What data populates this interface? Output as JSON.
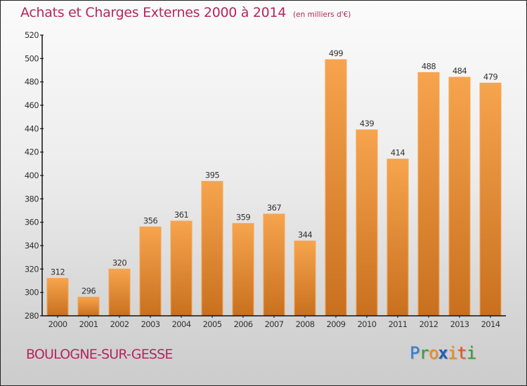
{
  "header": {
    "title": "Achats et Charges Externes 2000 à 2014",
    "subtitle": "(en milliers d'€)"
  },
  "footer": {
    "city": "BOULOGNE-SUR-GESSE",
    "logo_letters": [
      {
        "char": "P",
        "color": "#2f7fd0"
      },
      {
        "char": "r",
        "color": "#3f9a3a"
      },
      {
        "char": "o",
        "color": "#f28a1e"
      },
      {
        "char": "x",
        "color": "#1f5fb5"
      },
      {
        "char": "i",
        "color": "#f28a1e"
      },
      {
        "char": "t",
        "color": "#e8532a"
      },
      {
        "char": "i",
        "color": "#3f9a3a"
      }
    ]
  },
  "colors": {
    "title": "#b5265a",
    "bar_top": "#f7a44e",
    "bar_bottom": "#c8701e",
    "axis": "#111111",
    "label": "#333333"
  },
  "chart_data": {
    "type": "bar",
    "title": "Achats et Charges Externes 2000 à 2014",
    "subtitle": "(en milliers d'€)",
    "xlabel": "",
    "ylabel": "",
    "categories": [
      "2000",
      "2001",
      "2002",
      "2003",
      "2004",
      "2005",
      "2006",
      "2007",
      "2008",
      "2009",
      "2010",
      "2011",
      "2012",
      "2013",
      "2014"
    ],
    "values": [
      312,
      296,
      320,
      356,
      361,
      395,
      359,
      367,
      344,
      499,
      439,
      414,
      488,
      484,
      479
    ],
    "ylim": [
      280,
      520
    ],
    "yticks": [
      280,
      300,
      320,
      340,
      360,
      380,
      400,
      420,
      440,
      460,
      480,
      500,
      520
    ],
    "grid": false,
    "legend": "none",
    "data_labels": true
  }
}
